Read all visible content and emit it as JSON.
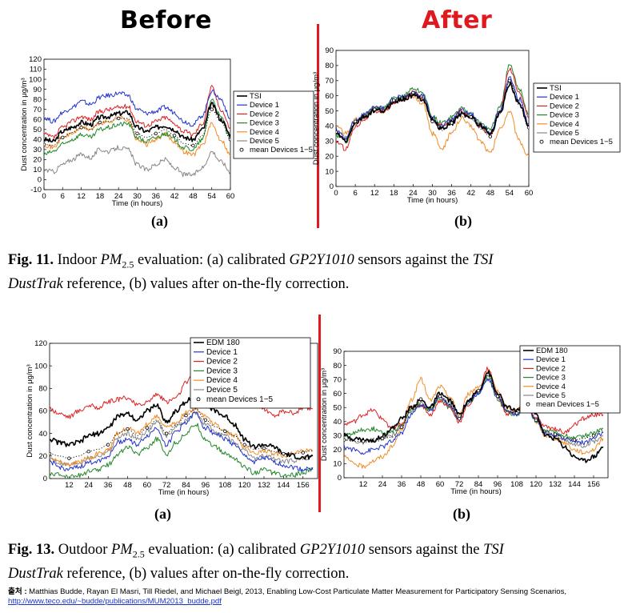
{
  "headings": {
    "before": "Before",
    "after": "After"
  },
  "panel_labels": {
    "a": "(a)",
    "b": "(b)"
  },
  "fig11_caption": {
    "prefix": "Fig. 11.",
    "t1": " Indoor ",
    "pm": "PM",
    "pm_sub": "2.5",
    "t2": " evaluation: (a) calibrated ",
    "sensor": "GP2Y1010",
    "t3": " sensors against the ",
    "tsi": "TSI",
    "dusttrak": "DustTrak",
    "t4": " reference, (b) values after on-the-fly correction."
  },
  "fig13_caption": {
    "prefix": "Fig. 13.",
    "t1": " Outdoor ",
    "pm": "PM",
    "pm_sub": "2.5",
    "t2": " evaluation: (a) calibrated ",
    "sensor": "GP2Y1010",
    "t3": " sensors against the ",
    "tsi": "TSI",
    "dusttrak": "DustTrak",
    "t4": " reference, (b) values after on-the-fly correction."
  },
  "source": {
    "label": "출처 :",
    "text": " Matthias Budde, Rayan El Masri, Till Riedel, and Michael Beigl, 2013, Enabling Low-Cost Particulate Matter Measurement for Participatory Sensing Scenarios,",
    "url": "http://www.teco.edu/~budde/publications/MUM2013_budde.pdf"
  },
  "colors": {
    "reference": "#000000",
    "device1": "#2233cc",
    "device2": "#dd2222",
    "device3": "#22882a",
    "device4": "#f08c28",
    "device5": "#888888",
    "divider": "#e0191f"
  },
  "chart_data": [
    {
      "id": "fig11a",
      "type": "line",
      "xlabel": "Time (in hours)",
      "ylabel": "Dust concentration in μg/m³",
      "xlim": [
        0,
        60
      ],
      "ylim": [
        -10,
        120
      ],
      "xticks": [
        0,
        6,
        12,
        18,
        24,
        30,
        36,
        42,
        48,
        54,
        60
      ],
      "yticks": [
        -10,
        0,
        10,
        20,
        30,
        40,
        50,
        60,
        70,
        80,
        90,
        100,
        110,
        120
      ],
      "legend": [
        "TSI",
        "Device 1",
        "Device 2",
        "Device 3",
        "Device 4",
        "Device 5",
        "mean Devices 1−5"
      ],
      "legend_position": "right",
      "x": [
        0,
        3,
        6,
        9,
        12,
        15,
        18,
        21,
        24,
        27,
        30,
        33,
        36,
        39,
        42,
        45,
        48,
        51,
        54,
        57,
        60
      ],
      "series": [
        {
          "name": "TSI",
          "values": [
            40,
            38,
            48,
            52,
            57,
            55,
            62,
            63,
            66,
            67,
            52,
            48,
            52,
            54,
            50,
            42,
            40,
            50,
            75,
            60,
            45
          ]
        },
        {
          "name": "Device 1",
          "values": [
            62,
            58,
            67,
            72,
            78,
            75,
            82,
            84,
            86,
            84,
            70,
            66,
            68,
            72,
            67,
            58,
            55,
            64,
            88,
            80,
            60
          ]
        },
        {
          "name": "Device 2",
          "values": [
            45,
            42,
            52,
            58,
            63,
            60,
            68,
            70,
            72,
            73,
            58,
            54,
            58,
            62,
            56,
            48,
            45,
            56,
            92,
            70,
            52
          ]
        },
        {
          "name": "Device 3",
          "values": [
            25,
            28,
            35,
            40,
            45,
            42,
            50,
            52,
            55,
            56,
            42,
            38,
            42,
            46,
            40,
            32,
            30,
            40,
            80,
            62,
            40
          ]
        },
        {
          "name": "Device 4",
          "values": [
            35,
            32,
            42,
            46,
            52,
            50,
            56,
            58,
            62,
            60,
            40,
            35,
            40,
            45,
            38,
            28,
            25,
            35,
            55,
            40,
            25
          ]
        },
        {
          "name": "Device 5",
          "values": [
            10,
            8,
            15,
            20,
            25,
            22,
            30,
            28,
            32,
            30,
            15,
            10,
            15,
            20,
            12,
            5,
            5,
            12,
            28,
            18,
            8
          ]
        },
        {
          "name": "mean Devices 1−5",
          "values": [
            35,
            34,
            42,
            47,
            52,
            50,
            57,
            58,
            61,
            61,
            46,
            42,
            46,
            50,
            44,
            36,
            34,
            44,
            70,
            58,
            40
          ]
        }
      ]
    },
    {
      "id": "fig11b",
      "type": "line",
      "xlabel": "Time (in hours)",
      "ylabel": "Dust concentration in μg/m³",
      "xlim": [
        0,
        60
      ],
      "ylim": [
        0,
        90
      ],
      "xticks": [
        0,
        6,
        12,
        18,
        24,
        30,
        36,
        42,
        48,
        54,
        60
      ],
      "yticks": [
        0,
        10,
        20,
        30,
        40,
        50,
        60,
        70,
        80,
        90
      ],
      "legend": [
        "TSI",
        "Device 1",
        "Device 2",
        "Device 3",
        "Device 4",
        "Device 5",
        "mean Devices 1−5"
      ],
      "legend_position": "right",
      "x": [
        0,
        3,
        6,
        9,
        12,
        15,
        18,
        21,
        24,
        27,
        30,
        33,
        36,
        39,
        42,
        45,
        48,
        51,
        54,
        57,
        60
      ],
      "series": [
        {
          "name": "TSI",
          "values": [
            35,
            30,
            42,
            46,
            50,
            50,
            56,
            58,
            60,
            58,
            44,
            38,
            42,
            48,
            46,
            40,
            35,
            48,
            68,
            55,
            40
          ]
        },
        {
          "name": "Device 1",
          "values": [
            38,
            32,
            44,
            48,
            52,
            52,
            58,
            60,
            62,
            60,
            45,
            40,
            44,
            50,
            48,
            40,
            36,
            50,
            72,
            58,
            42
          ]
        },
        {
          "name": "Device 2",
          "values": [
            30,
            25,
            40,
            45,
            50,
            50,
            56,
            58,
            62,
            58,
            44,
            40,
            44,
            50,
            46,
            40,
            34,
            50,
            78,
            62,
            45
          ]
        },
        {
          "name": "Device 3",
          "values": [
            34,
            30,
            42,
            47,
            52,
            52,
            58,
            60,
            65,
            62,
            46,
            42,
            46,
            52,
            48,
            42,
            38,
            52,
            80,
            65,
            48
          ]
        },
        {
          "name": "Device 4",
          "values": [
            40,
            35,
            44,
            48,
            52,
            50,
            55,
            58,
            60,
            55,
            35,
            25,
            35,
            45,
            40,
            30,
            22,
            38,
            50,
            30,
            20
          ]
        },
        {
          "name": "Device 5",
          "values": [
            36,
            32,
            43,
            47,
            51,
            51,
            57,
            59,
            62,
            59,
            44,
            39,
            43,
            49,
            46,
            39,
            35,
            49,
            70,
            56,
            41
          ]
        },
        {
          "name": "mean Devices 1−5",
          "values": [
            36,
            31,
            43,
            47,
            51,
            51,
            57,
            59,
            62,
            59,
            43,
            37,
            42,
            49,
            46,
            38,
            33,
            48,
            70,
            54,
            39
          ]
        }
      ]
    },
    {
      "id": "fig13a",
      "type": "line",
      "xlabel": "Time (in hours)",
      "ylabel": "Dust concentration in μg/m³",
      "xlim": [
        0,
        165
      ],
      "ylim": [
        0,
        120
      ],
      "xticks": [
        12,
        24,
        36,
        48,
        60,
        72,
        84,
        96,
        108,
        120,
        132,
        144,
        156
      ],
      "yticks": [
        0,
        20,
        40,
        60,
        80,
        100,
        120
      ],
      "legend": [
        "EDM 180",
        "Device 1",
        "Device 2",
        "Device 3",
        "Device 4",
        "Device 5",
        "mean Devices 1−5"
      ],
      "legend_position": "top-right",
      "x": [
        0,
        6,
        12,
        18,
        24,
        30,
        36,
        42,
        48,
        54,
        60,
        66,
        72,
        78,
        84,
        90,
        96,
        102,
        108,
        114,
        120,
        126,
        132,
        138,
        144,
        150,
        156,
        162
      ],
      "series": [
        {
          "name": "EDM 180",
          "values": [
            35,
            32,
            30,
            32,
            38,
            40,
            45,
            55,
            58,
            52,
            60,
            65,
            50,
            60,
            68,
            78,
            65,
            60,
            55,
            48,
            35,
            28,
            30,
            28,
            22,
            20,
            18,
            20
          ]
        },
        {
          "name": "Device 1",
          "values": [
            15,
            10,
            8,
            10,
            14,
            16,
            20,
            32,
            35,
            30,
            38,
            45,
            30,
            42,
            50,
            58,
            45,
            40,
            35,
            30,
            20,
            15,
            18,
            15,
            12,
            10,
            8,
            10
          ]
        },
        {
          "name": "Device 2",
          "values": [
            62,
            58,
            55,
            60,
            65,
            63,
            68,
            70,
            72,
            65,
            68,
            75,
            68,
            72,
            85,
            95,
            80,
            72,
            70,
            68,
            75,
            72,
            62,
            55,
            60,
            58,
            62,
            62
          ]
        },
        {
          "name": "Device 3",
          "values": [
            5,
            3,
            2,
            3,
            6,
            8,
            12,
            22,
            28,
            22,
            28,
            35,
            22,
            32,
            40,
            48,
            35,
            28,
            22,
            18,
            10,
            5,
            8,
            5,
            2,
            3,
            5,
            8
          ]
        },
        {
          "name": "Device 4",
          "values": [
            20,
            15,
            12,
            15,
            18,
            22,
            25,
            40,
            45,
            40,
            48,
            55,
            45,
            50,
            58,
            62,
            55,
            48,
            42,
            38,
            28,
            22,
            25,
            22,
            20,
            22,
            24,
            25
          ]
        },
        {
          "name": "Device 5",
          "values": [
            18,
            14,
            12,
            14,
            18,
            20,
            24,
            36,
            40,
            35,
            42,
            50,
            38,
            46,
            52,
            58,
            48,
            42,
            38,
            32,
            24,
            18,
            20,
            18,
            15,
            16,
            18,
            20
          ]
        },
        {
          "name": "mean Devices 1−5",
          "values": [
            22,
            20,
            18,
            20,
            24,
            26,
            30,
            40,
            44,
            38,
            45,
            52,
            40,
            48,
            56,
            62,
            52,
            46,
            42,
            38,
            30,
            26,
            27,
            24,
            22,
            22,
            23,
            25
          ]
        }
      ]
    },
    {
      "id": "fig13b",
      "type": "line",
      "xlabel": "Time (in hours)",
      "ylabel": "Dust concentration in μg/m³",
      "xlim": [
        0,
        165
      ],
      "ylim": [
        0,
        90
      ],
      "xticks": [
        12,
        24,
        36,
        48,
        60,
        72,
        84,
        96,
        108,
        120,
        132,
        144,
        156
      ],
      "yticks": [
        0,
        10,
        20,
        30,
        40,
        50,
        60,
        70,
        80,
        90
      ],
      "legend": [
        "EDM 180",
        "Device 1",
        "Device 2",
        "Device 3",
        "Device 4",
        "Device 5",
        "mean Devices 1−5"
      ],
      "legend_position": "top-right",
      "x": [
        0,
        6,
        12,
        18,
        24,
        30,
        36,
        42,
        48,
        54,
        60,
        66,
        72,
        78,
        84,
        90,
        96,
        102,
        108,
        114,
        120,
        126,
        132,
        138,
        144,
        150,
        156,
        162
      ],
      "series": [
        {
          "name": "EDM 180",
          "values": [
            30,
            28,
            27,
            26,
            30,
            35,
            42,
            50,
            55,
            50,
            60,
            55,
            45,
            55,
            62,
            75,
            60,
            50,
            48,
            55,
            45,
            30,
            28,
            22,
            15,
            12,
            15,
            22
          ]
        },
        {
          "name": "Device 1",
          "values": [
            22,
            20,
            18,
            20,
            22,
            26,
            32,
            45,
            52,
            48,
            58,
            52,
            42,
            55,
            60,
            70,
            58,
            48,
            45,
            52,
            42,
            32,
            30,
            28,
            26,
            25,
            28,
            32
          ]
        },
        {
          "name": "Device 2",
          "values": [
            38,
            40,
            45,
            48,
            42,
            35,
            38,
            50,
            52,
            45,
            55,
            50,
            40,
            52,
            62,
            78,
            58,
            45,
            48,
            55,
            42,
            36,
            35,
            32,
            38,
            42,
            45,
            45
          ]
        },
        {
          "name": "Device 3",
          "values": [
            30,
            32,
            34,
            35,
            32,
            33,
            38,
            48,
            52,
            48,
            56,
            50,
            42,
            54,
            60,
            72,
            56,
            46,
            45,
            52,
            40,
            34,
            32,
            30,
            28,
            30,
            32,
            35
          ]
        },
        {
          "name": "Device 4",
          "values": [
            15,
            10,
            8,
            12,
            15,
            22,
            35,
            55,
            70,
            55,
            65,
            58,
            45,
            60,
            65,
            75,
            62,
            50,
            48,
            55,
            40,
            30,
            28,
            25,
            20,
            18,
            20,
            28
          ]
        },
        {
          "name": "Device 5",
          "values": [
            28,
            26,
            25,
            26,
            28,
            30,
            36,
            48,
            53,
            48,
            58,
            52,
            43,
            55,
            61,
            72,
            58,
            48,
            46,
            53,
            42,
            32,
            30,
            27,
            24,
            23,
            26,
            30
          ]
        },
        {
          "name": "mean Devices 1−5",
          "values": [
            27,
            26,
            26,
            28,
            28,
            29,
            36,
            49,
            56,
            49,
            58,
            52,
            42,
            55,
            62,
            73,
            58,
            47,
            46,
            53,
            41,
            33,
            31,
            28,
            27,
            28,
            30,
            34
          ]
        }
      ]
    }
  ]
}
